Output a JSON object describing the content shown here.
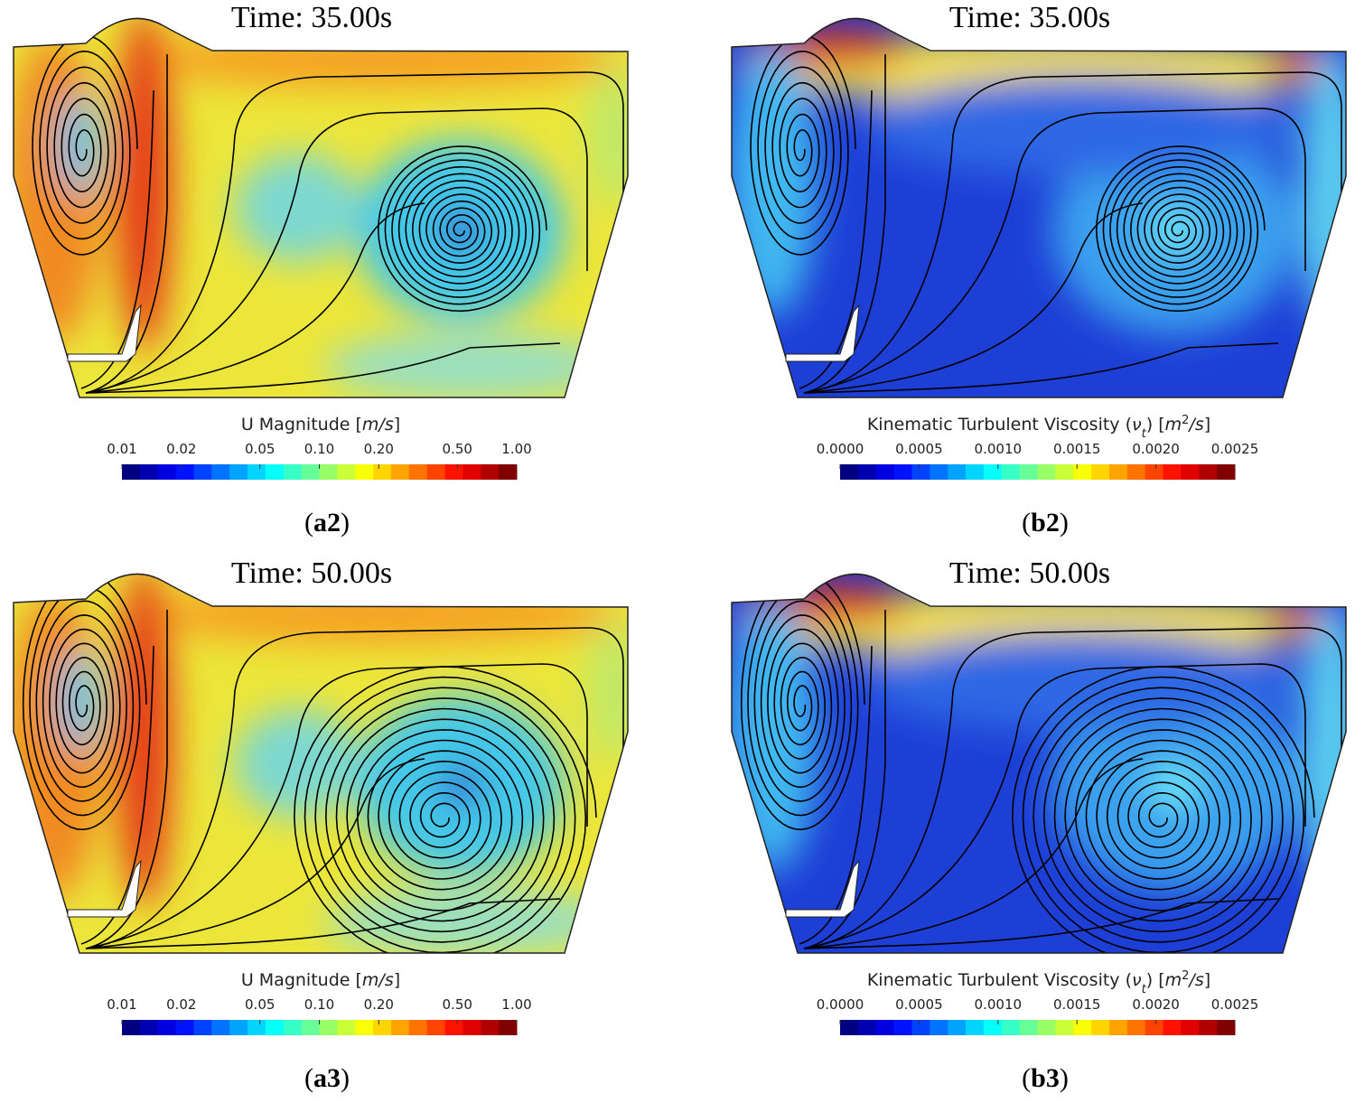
{
  "panels": [
    {
      "title": "Time: 35.00s",
      "colorbar": {
        "label": [
          {
            "text": "U Magnitude ["
          },
          {
            "text": "m/s",
            "style": "italic"
          },
          {
            "text": "]"
          }
        ],
        "lim": [
          0.01,
          1
        ],
        "scale": "log",
        "ticks": [
          {
            "value": 0.01,
            "label": "0.01"
          },
          {
            "value": 0.02,
            "label": "0.02"
          },
          {
            "value": 0.05,
            "label": "0.05"
          },
          {
            "value": 0.1,
            "label": "0.10"
          },
          {
            "value": 0.2,
            "label": "0.20"
          },
          {
            "value": 0.5,
            "label": "0.50"
          },
          {
            "value": 1,
            "label": "1.00"
          }
        ]
      },
      "caption": [
        {
          "text": "("
        },
        {
          "text": "a2",
          "style": "bold"
        },
        {
          "text": ")"
        }
      ]
    },
    {
      "title": "Time: 35.00s",
      "colorbar": {
        "label": [
          {
            "text": "Kinematic Turbulent Viscosity ("
          },
          {
            "text": "ν",
            "style": "italic"
          },
          {
            "text": "t",
            "style": "sub"
          },
          {
            "text": ") ["
          },
          {
            "text": "m",
            "style": "italic"
          },
          {
            "text": "2",
            "style": "sup"
          },
          {
            "text": "/s",
            "style": "italic"
          },
          {
            "text": "]"
          }
        ],
        "lim": [
          0,
          0.0025
        ],
        "scale": "linear",
        "ticks": [
          {
            "value": 0,
            "label": "0.0000"
          },
          {
            "value": 0.0005,
            "label": "0.0005"
          },
          {
            "value": 0.001,
            "label": "0.0010"
          },
          {
            "value": 0.0015,
            "label": "0.0015"
          },
          {
            "value": 0.002,
            "label": "0.0020"
          },
          {
            "value": 0.0025,
            "label": "0.0025"
          }
        ]
      },
      "caption": [
        {
          "text": "("
        },
        {
          "text": "b2",
          "style": "bold"
        },
        {
          "text": ")"
        }
      ]
    },
    {
      "title": "Time: 50.00s",
      "colorbar": {
        "label": [
          {
            "text": "U Magnitude ["
          },
          {
            "text": "m/s",
            "style": "italic"
          },
          {
            "text": "]"
          }
        ],
        "lim": [
          0.01,
          1
        ],
        "scale": "log",
        "ticks": [
          {
            "value": 0.01,
            "label": "0.01"
          },
          {
            "value": 0.02,
            "label": "0.02"
          },
          {
            "value": 0.05,
            "label": "0.05"
          },
          {
            "value": 0.1,
            "label": "0.10"
          },
          {
            "value": 0.2,
            "label": "0.20"
          },
          {
            "value": 0.5,
            "label": "0.50"
          },
          {
            "value": 1,
            "label": "1.00"
          }
        ]
      },
      "caption": [
        {
          "text": "("
        },
        {
          "text": "a3",
          "style": "bold"
        },
        {
          "text": ")"
        }
      ]
    },
    {
      "title": "Time: 50.00s",
      "colorbar": {
        "label": [
          {
            "text": "Kinematic Turbulent Viscosity ("
          },
          {
            "text": "ν",
            "style": "italic"
          },
          {
            "text": "t",
            "style": "sub"
          },
          {
            "text": ") ["
          },
          {
            "text": "m",
            "style": "italic"
          },
          {
            "text": "2",
            "style": "sup"
          },
          {
            "text": "/s",
            "style": "italic"
          },
          {
            "text": "]"
          }
        ],
        "lim": [
          0,
          0.0025
        ],
        "scale": "linear",
        "ticks": [
          {
            "value": 0,
            "label": "0.0000"
          },
          {
            "value": 0.0005,
            "label": "0.0005"
          },
          {
            "value": 0.001,
            "label": "0.0010"
          },
          {
            "value": 0.0015,
            "label": "0.0015"
          },
          {
            "value": 0.002,
            "label": "0.0020"
          },
          {
            "value": 0.0025,
            "label": "0.0025"
          }
        ]
      },
      "caption": [
        {
          "text": "("
        },
        {
          "text": "b3",
          "style": "bold"
        },
        {
          "text": ")"
        }
      ]
    }
  ]
}
